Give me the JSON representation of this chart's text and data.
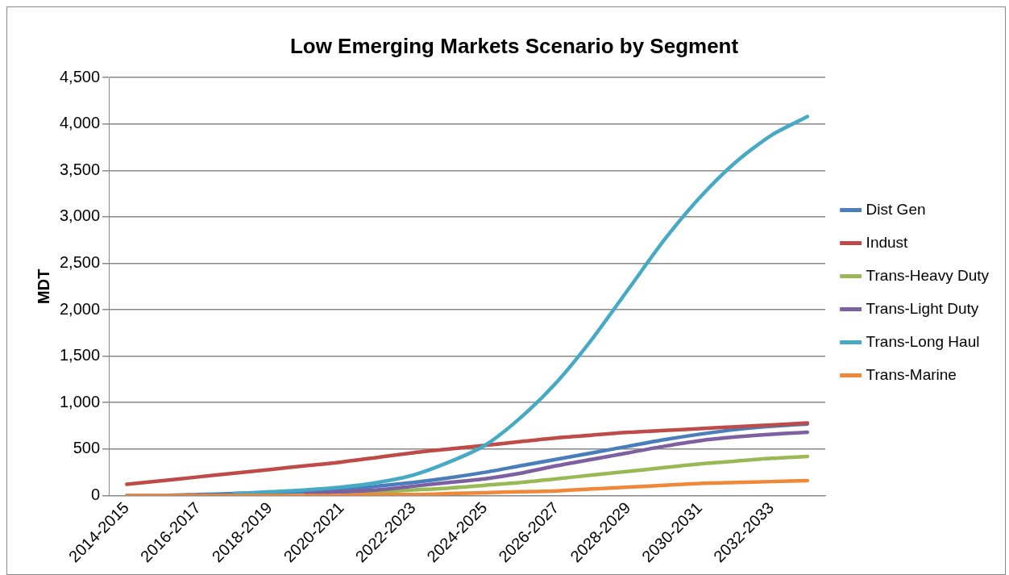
{
  "chart_data": {
    "type": "line",
    "title": "Low Emerging Markets Scenario by Segment",
    "ylabel": "MDT",
    "categories": [
      "2014-2015",
      null,
      "2016-2017",
      null,
      "2018-2019",
      null,
      "2020-2021",
      null,
      "2022-2023",
      null,
      "2024-2025",
      null,
      "2026-2027",
      null,
      "2028-2029",
      null,
      "2030-2031",
      null,
      "2032-2033",
      null
    ],
    "series": [
      {
        "name": "Dist Gen",
        "color": "#4a7ebb",
        "values": [
          0,
          0,
          10,
          20,
          30,
          40,
          60,
          100,
          140,
          190,
          250,
          320,
          390,
          460,
          530,
          600,
          660,
          710,
          745,
          770
        ]
      },
      {
        "name": "Indust",
        "color": "#be4b48",
        "values": [
          120,
          160,
          200,
          240,
          280,
          320,
          360,
          410,
          460,
          500,
          540,
          580,
          620,
          650,
          680,
          700,
          720,
          740,
          760,
          780
        ]
      },
      {
        "name": "Trans-Heavy Duty",
        "color": "#98b954",
        "values": [
          null,
          null,
          null,
          null,
          null,
          null,
          20,
          40,
          60,
          80,
          110,
          140,
          180,
          220,
          260,
          300,
          340,
          370,
          400,
          420
        ]
      },
      {
        "name": "Trans-Light Duty",
        "color": "#7d60a0",
        "values": [
          null,
          null,
          null,
          null,
          null,
          20,
          40,
          60,
          100,
          140,
          180,
          240,
          320,
          390,
          460,
          530,
          590,
          630,
          660,
          680
        ]
      },
      {
        "name": "Trans-Long Haul",
        "color": "#46aac5",
        "values": [
          null,
          null,
          null,
          20,
          40,
          60,
          90,
          140,
          220,
          360,
          540,
          840,
          1220,
          1690,
          2220,
          2750,
          3210,
          3590,
          3880,
          4080
        ]
      },
      {
        "name": "Trans-Marine",
        "color": "#f0883a",
        "values": [
          0,
          0,
          0,
          0,
          0,
          0,
          0,
          10,
          10,
          20,
          30,
          40,
          50,
          70,
          90,
          110,
          130,
          140,
          150,
          160
        ]
      }
    ],
    "ylim": [
      0,
      4500
    ],
    "yticks": [
      {
        "value": 0,
        "label": "0"
      },
      {
        "value": 500,
        "label": "500"
      },
      {
        "value": 1000,
        "label": "1,000"
      },
      {
        "value": 1500,
        "label": "1,500"
      },
      {
        "value": 2000,
        "label": "2,000"
      },
      {
        "value": 2500,
        "label": "2,500"
      },
      {
        "value": 3000,
        "label": "3,000"
      },
      {
        "value": 3500,
        "label": "3,500"
      },
      {
        "value": 4000,
        "label": "4,000"
      },
      {
        "value": 4500,
        "label": "4,500"
      }
    ],
    "grid": "y",
    "legend": "right",
    "marker": "none",
    "line_style": "solid"
  }
}
